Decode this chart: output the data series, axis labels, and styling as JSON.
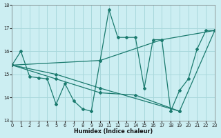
{
  "xlabel": "Humidex (Indice chaleur)",
  "xlim": [
    0,
    23
  ],
  "ylim": [
    13,
    18
  ],
  "yticks": [
    13,
    14,
    15,
    16,
    17,
    18
  ],
  "xticks": [
    0,
    1,
    2,
    3,
    4,
    5,
    6,
    7,
    8,
    9,
    10,
    11,
    12,
    13,
    14,
    15,
    16,
    17,
    18,
    19,
    20,
    21,
    22,
    23
  ],
  "bg_color": "#cceef2",
  "line_color": "#1a7a6e",
  "grid_color": "#a8d8dc",
  "series": [
    {
      "x": [
        0,
        1,
        2,
        3,
        4,
        5,
        6,
        7,
        8,
        9,
        10,
        11,
        12,
        13,
        14,
        15,
        16,
        17,
        18,
        19,
        20,
        21,
        22,
        23
      ],
      "y": [
        15.4,
        16.0,
        14.9,
        14.85,
        14.8,
        13.7,
        14.6,
        13.85,
        13.5,
        13.4,
        15.6,
        17.8,
        16.6,
        16.6,
        16.6,
        14.4,
        16.5,
        16.5,
        13.4,
        14.3,
        14.8,
        16.1,
        16.9,
        16.9
      ]
    },
    {
      "x": [
        0,
        10,
        17,
        23
      ],
      "y": [
        15.4,
        15.6,
        16.5,
        16.9
      ]
    },
    {
      "x": [
        0,
        5,
        10,
        19
      ],
      "y": [
        15.4,
        15.0,
        14.4,
        13.4
      ]
    },
    {
      "x": [
        0,
        5,
        10,
        14,
        19,
        23
      ],
      "y": [
        15.4,
        14.8,
        14.2,
        14.1,
        13.4,
        16.9
      ]
    }
  ]
}
